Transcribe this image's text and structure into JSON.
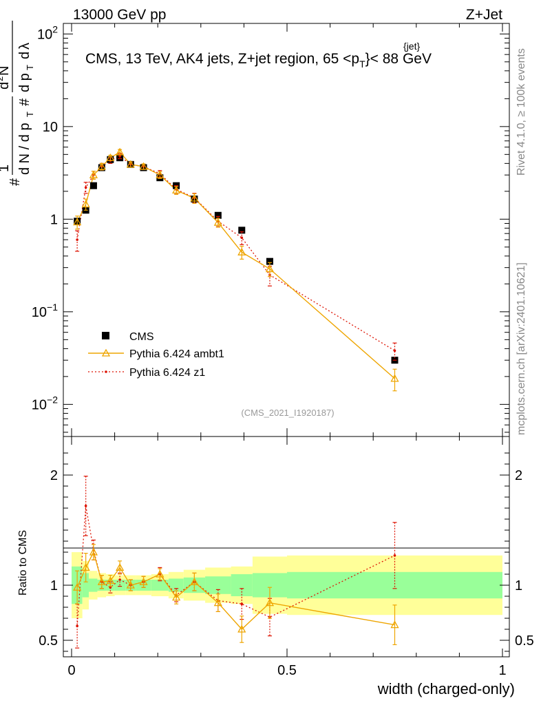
{
  "header": {
    "energy_label": "13000 GeV pp",
    "process_label": "Z+Jet"
  },
  "side_labels": {
    "rivet_version": "Rivet 4.1.0, ≥ 100k events",
    "source": "mcplots.cern.ch [arXiv:2401.10621]"
  },
  "chart_data": {
    "type": "scatter",
    "title": "CMS, 13 TeV, AK4 jets, Z+jet region, 65 <p",
    "title_sup": "{jet}",
    "title_sub": "T",
    "title_end": "}< 88 GeV",
    "analysis_id": "(CMS_2021_I1920187)",
    "xlabel": "width (charged-only)",
    "ylabel_ratio": "Ratio to CMS",
    "xlim": [
      0,
      1
    ],
    "ylim_main": [
      0.0045,
      130
    ],
    "ylim_ratio": [
      0.35,
      2.35
    ],
    "yscale_main": "log",
    "x_ticks": [
      {
        "value": 0,
        "label": "0"
      },
      {
        "value": 0.5,
        "label": "0.5"
      },
      {
        "value": 1,
        "label": "1"
      }
    ],
    "y_ticks_main": [
      {
        "value": 0.01,
        "base": "10",
        "exp": "−2"
      },
      {
        "value": 0.1,
        "base": "10",
        "exp": "−1"
      },
      {
        "value": 1,
        "base": "1",
        "exp": ""
      },
      {
        "value": 10,
        "base": "10",
        "exp": ""
      },
      {
        "value": 100,
        "base": "10",
        "exp": "2"
      }
    ],
    "y_ticks_ratio": [
      {
        "value": 0.5,
        "label": "0.5"
      },
      {
        "value": 1,
        "label": "1"
      },
      {
        "value": 2,
        "label": "2"
      }
    ],
    "legend": {
      "position": "bottom-left",
      "entries": [
        "CMS",
        "Pythia 6.424 ambt1",
        "Pythia 6.424 z1"
      ]
    },
    "colors": {
      "data": "#000000",
      "ambt1": "#eea500",
      "z1": "#dd1100",
      "band_stat": "#99ff99",
      "band_total": "#ffff99"
    },
    "bins": [
      {
        "lo": 0.0,
        "hi": 0.025
      },
      {
        "lo": 0.025,
        "hi": 0.04
      },
      {
        "lo": 0.04,
        "hi": 0.06
      },
      {
        "lo": 0.06,
        "hi": 0.08
      },
      {
        "lo": 0.08,
        "hi": 0.1
      },
      {
        "lo": 0.1,
        "hi": 0.125
      },
      {
        "lo": 0.125,
        "hi": 0.15
      },
      {
        "lo": 0.15,
        "hi": 0.185
      },
      {
        "lo": 0.185,
        "hi": 0.225
      },
      {
        "lo": 0.225,
        "hi": 0.26
      },
      {
        "lo": 0.26,
        "hi": 0.31
      },
      {
        "lo": 0.31,
        "hi": 0.37
      },
      {
        "lo": 0.37,
        "hi": 0.42
      },
      {
        "lo": 0.42,
        "hi": 0.5
      },
      {
        "lo": 0.5,
        "hi": 1.0
      }
    ],
    "series": [
      {
        "name": "CMS",
        "x": [
          0.013,
          0.033,
          0.051,
          0.07,
          0.09,
          0.112,
          0.137,
          0.167,
          0.205,
          0.243,
          0.285,
          0.34,
          0.395,
          0.46,
          0.75
        ],
        "y": [
          0.95,
          1.25,
          2.3,
          3.6,
          4.4,
          4.6,
          3.9,
          3.6,
          2.8,
          2.3,
          1.65,
          1.1,
          0.76,
          0.35,
          0.03
        ],
        "ratio_stat": [
          0.17,
          0.11,
          0.06,
          0.05,
          0.05,
          0.05,
          0.05,
          0.05,
          0.05,
          0.06,
          0.07,
          0.08,
          0.1,
          0.11,
          0.12
        ],
        "ratio_total": [
          0.3,
          0.22,
          0.13,
          0.11,
          0.1,
          0.09,
          0.09,
          0.09,
          0.1,
          0.12,
          0.14,
          0.16,
          0.17,
          0.26,
          0.27
        ]
      },
      {
        "name": "Pythia 6.424 ambt1",
        "x": [
          0.013,
          0.033,
          0.051,
          0.07,
          0.09,
          0.112,
          0.137,
          0.167,
          0.205,
          0.243,
          0.285,
          0.34,
          0.395,
          0.46,
          0.75
        ],
        "y": [
          0.93,
          1.45,
          3.0,
          3.7,
          4.6,
          5.3,
          3.9,
          3.7,
          3.0,
          2.05,
          1.68,
          0.92,
          0.44,
          0.29,
          0.019
        ],
        "err": [
          0.15,
          0.2,
          0.3,
          0.3,
          0.3,
          0.35,
          0.25,
          0.25,
          0.25,
          0.2,
          0.2,
          0.1,
          0.07,
          0.05,
          0.005
        ],
        "ratio": [
          0.98,
          1.16,
          1.3,
          1.03,
          1.04,
          1.16,
          1.0,
          1.03,
          1.1,
          0.89,
          1.03,
          0.84,
          0.6,
          0.84,
          0.64
        ],
        "ratio_err": [
          0.15,
          0.13,
          0.07,
          0.06,
          0.05,
          0.06,
          0.05,
          0.05,
          0.05,
          0.06,
          0.08,
          0.08,
          0.12,
          0.14,
          0.18
        ]
      },
      {
        "name": "Pythia 6.424 z1",
        "x": [
          0.013,
          0.033,
          0.051,
          0.07,
          0.09,
          0.112,
          0.137,
          0.167,
          0.205,
          0.243,
          0.285,
          0.34,
          0.395,
          0.46,
          0.75
        ],
        "y": [
          0.6,
          2.2,
          3.0,
          3.7,
          4.3,
          4.8,
          3.9,
          3.7,
          3.1,
          2.1,
          1.7,
          0.95,
          0.63,
          0.25,
          0.038
        ],
        "err": [
          0.15,
          0.3,
          0.3,
          0.3,
          0.3,
          0.3,
          0.25,
          0.25,
          0.25,
          0.2,
          0.2,
          0.12,
          0.1,
          0.06,
          0.008
        ],
        "ratio": [
          0.63,
          1.72,
          1.32,
          1.03,
          0.98,
          1.05,
          1.0,
          1.03,
          1.1,
          0.91,
          1.03,
          0.86,
          0.83,
          0.71,
          1.27
        ],
        "ratio_err": [
          0.2,
          0.27,
          0.09,
          0.06,
          0.05,
          0.06,
          0.05,
          0.05,
          0.06,
          0.06,
          0.08,
          0.1,
          0.14,
          0.17,
          0.3
        ]
      }
    ]
  }
}
